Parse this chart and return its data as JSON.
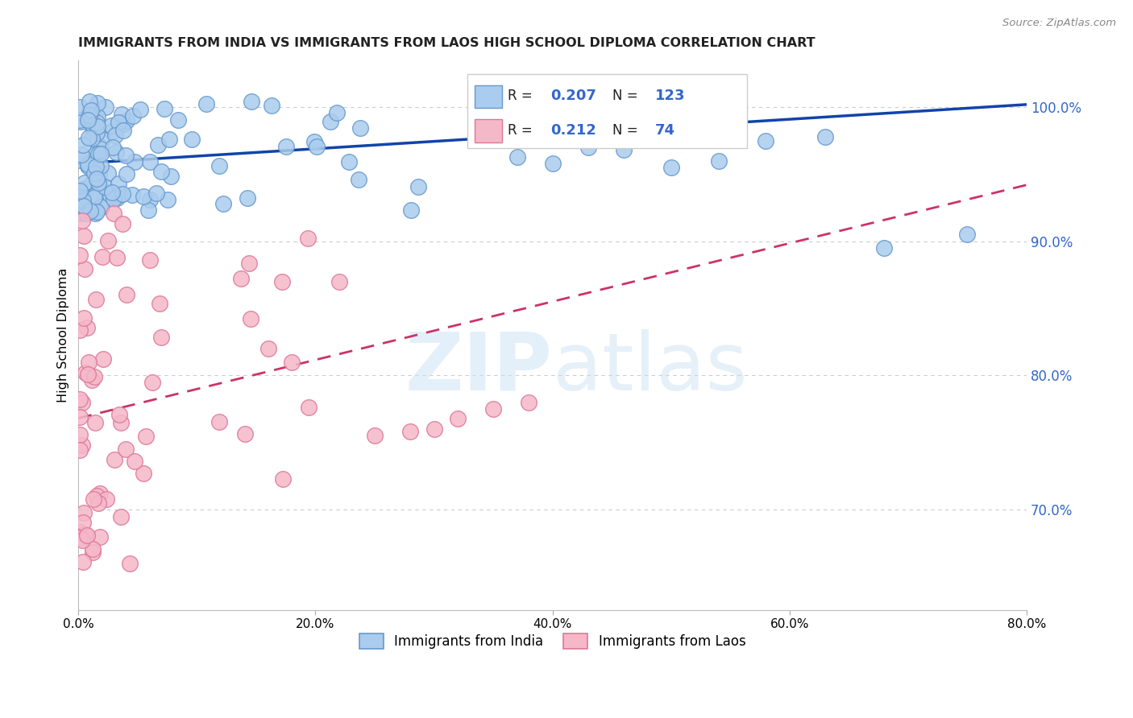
{
  "title": "IMMIGRANTS FROM INDIA VS IMMIGRANTS FROM LAOS HIGH SCHOOL DIPLOMA CORRELATION CHART",
  "source": "Source: ZipAtlas.com",
  "ylabel": "High School Diploma",
  "xmin": 0.0,
  "xmax": 0.8,
  "ymin": 0.625,
  "ymax": 1.035,
  "ytick_labels": [
    "70.0%",
    "80.0%",
    "90.0%",
    "100.0%"
  ],
  "ytick_values": [
    0.7,
    0.8,
    0.9,
    1.0
  ],
  "xtick_labels": [
    "0.0%",
    "20.0%",
    "40.0%",
    "60.0%",
    "80.0%"
  ],
  "xtick_values": [
    0.0,
    0.2,
    0.4,
    0.6,
    0.8
  ],
  "india_color": "#aaccee",
  "india_edge_color": "#6699cc",
  "laos_color": "#f5b8c8",
  "laos_edge_color": "#dd7799",
  "india_R": 0.207,
  "india_N": 123,
  "laos_R": 0.212,
  "laos_N": 74,
  "india_line_color": "#1144aa",
  "laos_line_color": "#cc3366",
  "watermark_zip": "ZIP",
  "watermark_atlas": "atlas",
  "legend_india": "Immigrants from India",
  "legend_laos": "Immigrants from Laos"
}
